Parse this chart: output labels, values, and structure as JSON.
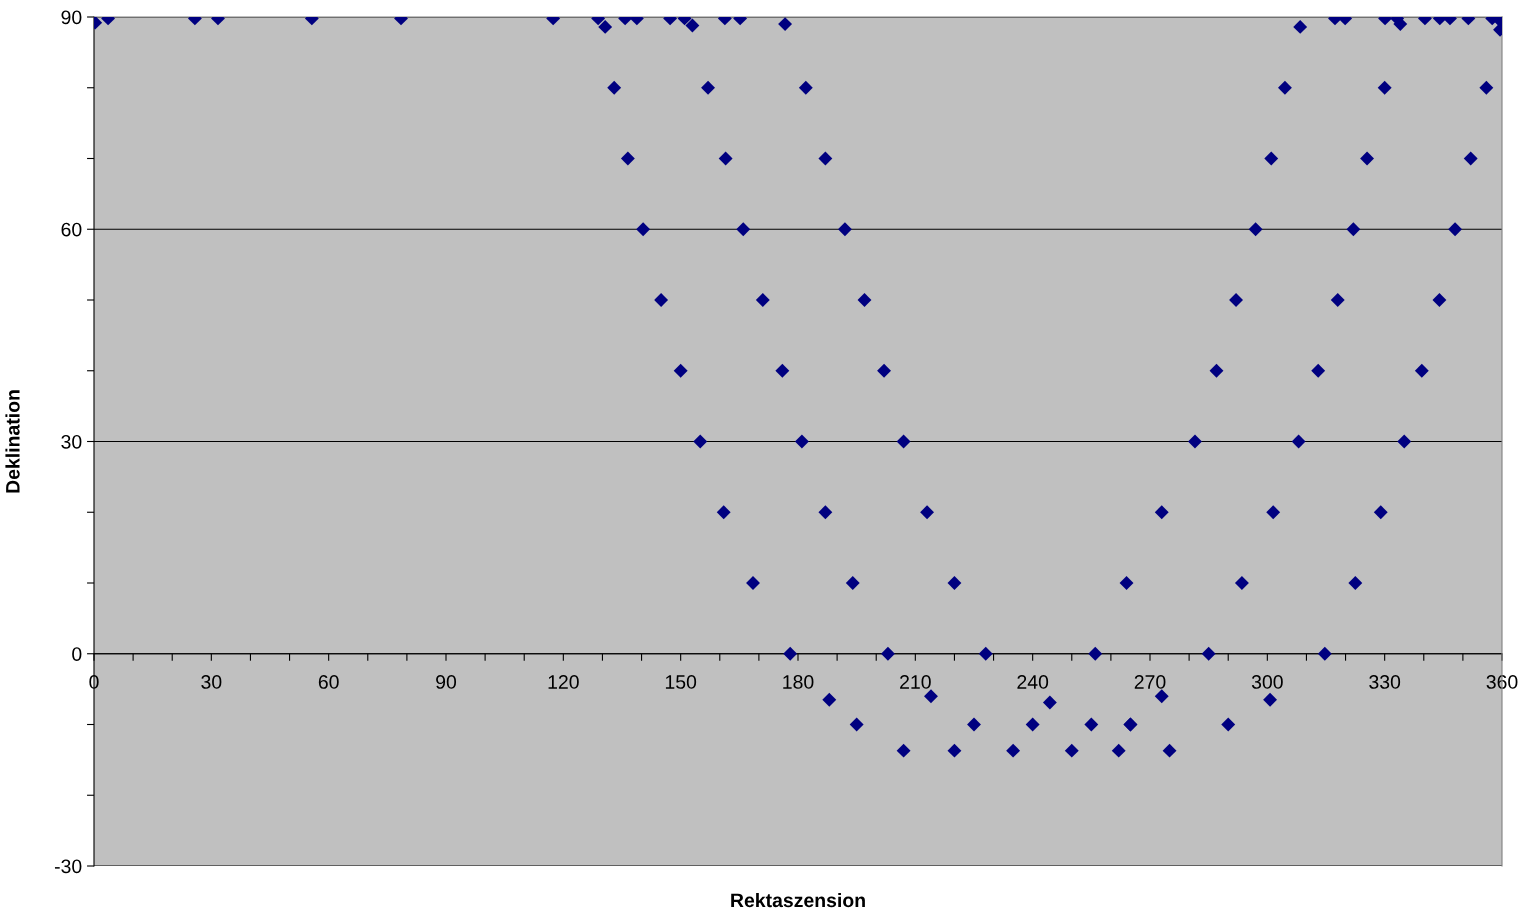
{
  "chart_data": {
    "type": "scatter",
    "xlabel": "Rektaszension",
    "ylabel": "Deklination",
    "xlim": [
      0,
      360
    ],
    "ylim": [
      -30,
      90
    ],
    "xticks": [
      0,
      {
        "value": 10,
        "label": null
      },
      {
        "value": 20,
        "label": null
      },
      30,
      {
        "value": 40,
        "label": null
      },
      {
        "value": 50,
        "label": null
      },
      60,
      {
        "value": 70,
        "label": null
      },
      {
        "value": 80,
        "label": null
      },
      90,
      {
        "value": 100,
        "label": null
      },
      {
        "value": 110,
        "label": null
      },
      120,
      {
        "value": 130,
        "label": null
      },
      {
        "value": 140,
        "label": null
      },
      150,
      {
        "value": 160,
        "label": null
      },
      {
        "value": 170,
        "label": null
      },
      180,
      {
        "value": 190,
        "label": null
      },
      {
        "value": 200,
        "label": null
      },
      210,
      {
        "value": 220,
        "label": null
      },
      {
        "value": 230,
        "label": null
      },
      240,
      {
        "value": 250,
        "label": null
      },
      {
        "value": 260,
        "label": null
      },
      270,
      {
        "value": 280,
        "label": null
      },
      {
        "value": 290,
        "label": null
      },
      300,
      {
        "value": 310,
        "label": null
      },
      {
        "value": 320,
        "label": null
      },
      330,
      {
        "value": 340,
        "label": null
      },
      {
        "value": 350,
        "label": null
      },
      360
    ],
    "yticks": [
      -30,
      {
        "value": -20,
        "label": null
      },
      {
        "value": -10,
        "label": null
      },
      0,
      {
        "value": 10,
        "label": null
      },
      {
        "value": 20,
        "label": null
      },
      30,
      {
        "value": 40,
        "label": null
      },
      {
        "value": 50,
        "label": null
      },
      60,
      {
        "value": 70,
        "label": null
      },
      {
        "value": 80,
        "label": null
      },
      90
    ],
    "grid": "y",
    "marker": "diamond",
    "series": [
      {
        "color": "#000080",
        "x": [
          0.3,
          3.6,
          25.8,
          31.7,
          55.7,
          78.5,
          117.4,
          128.9,
          135.8,
          138.8,
          147.3,
          151,
          161.3,
          165.2,
          317.3,
          319.9,
          330.1,
          333.2,
          340.3,
          344.1,
          346.7,
          351.4,
          357.5,
          359.5,
          130.7,
          133,
          136.5,
          140.4,
          145,
          150,
          155,
          161,
          168.5,
          178,
          188,
          195,
          207,
          176.7,
          182,
          187,
          192,
          197,
          202,
          207,
          213,
          220,
          228,
          244.4,
          153,
          157,
          161.5,
          166,
          171,
          176,
          181,
          187,
          194,
          203,
          214,
          225,
          220,
          235,
          250,
          262,
          275,
          240,
          255,
          265,
          256,
          264,
          273,
          281.5,
          287,
          292,
          297,
          301,
          304.5,
          308.4,
          359.5,
          356,
          352,
          348,
          344,
          339.5,
          335,
          329,
          322.5,
          314.7,
          300.7,
          290,
          334,
          330,
          325.5,
          322,
          318,
          313,
          308,
          301.5,
          293.5,
          285,
          273,
          265
        ],
        "values": [
          89.2,
          89.8,
          89.8,
          89.8,
          89.8,
          89.8,
          89.8,
          89.8,
          89.8,
          89.8,
          89.8,
          89.8,
          89.8,
          89.8,
          89.8,
          89.8,
          89.8,
          89.8,
          89.8,
          89.8,
          89.8,
          89.8,
          89.8,
          89.5,
          88.6,
          80,
          70,
          60,
          50,
          40,
          30,
          20,
          10,
          0,
          -6.5,
          -10,
          -13.7,
          89,
          80,
          70,
          60,
          50,
          40,
          30,
          20,
          10,
          0,
          -6.9,
          88.8,
          80,
          70,
          60,
          50,
          40,
          30,
          20,
          10,
          0,
          -6,
          -10,
          -13.7,
          -13.7,
          -13.7,
          -13.7,
          -13.7,
          -10,
          -10,
          -10,
          0,
          10,
          20,
          30,
          40,
          50,
          60,
          70,
          80,
          88.6,
          88.2,
          80,
          70,
          60,
          50,
          40,
          30,
          20,
          10,
          0,
          -6.5,
          -10,
          89,
          80,
          70,
          60,
          50,
          40,
          30,
          20,
          10,
          0,
          -6,
          -10
        ]
      }
    ]
  }
}
